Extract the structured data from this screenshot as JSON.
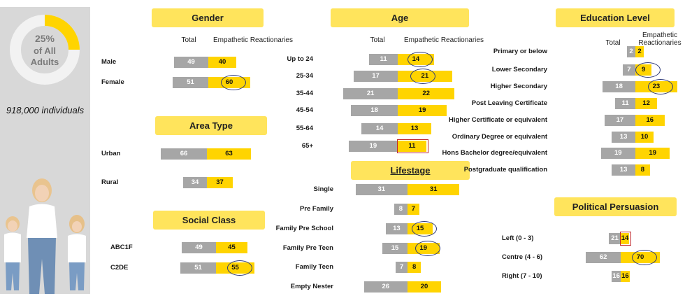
{
  "summary": {
    "percent": "25%",
    "line2": "of All",
    "line3": "Adults",
    "individuals": "918,000  individuals",
    "donut_fraction": 0.25
  },
  "colors": {
    "total": "#a6a6a6",
    "segment": "#ffd400",
    "header": "#ffe45c",
    "sidebar": "#d8d8d8"
  },
  "chart_data": [
    {
      "type": "bar",
      "title": "Gender",
      "col_total": "Total",
      "col_segment": "Empathetic Reactionaries",
      "categories": [
        "Male",
        "Female"
      ],
      "series": [
        {
          "name": "Total",
          "values": [
            49,
            51
          ]
        },
        {
          "name": "Empathetic Reactionaries",
          "values": [
            40,
            60
          ]
        }
      ],
      "highlights": {
        "circled": [
          "Female"
        ],
        "boxed": []
      }
    },
    {
      "type": "bar",
      "title": "Area Type",
      "categories": [
        "Urban",
        "Rural"
      ],
      "series": [
        {
          "name": "Total",
          "values": [
            66,
            34
          ]
        },
        {
          "name": "Empathetic Reactionaries",
          "values": [
            63,
            37
          ]
        }
      ],
      "highlights": {
        "circled": [],
        "boxed": []
      }
    },
    {
      "type": "bar",
      "title": "Social Class",
      "categories": [
        "ABC1F",
        "C2DE"
      ],
      "series": [
        {
          "name": "Total",
          "values": [
            49,
            51
          ]
        },
        {
          "name": "Empathetic Reactionaries",
          "values": [
            45,
            55
          ]
        }
      ],
      "highlights": {
        "circled": [
          "C2DE"
        ],
        "boxed": []
      }
    },
    {
      "type": "bar",
      "title": "Age",
      "col_total": "Total",
      "col_segment": "Empathetic Reactionaries",
      "categories": [
        "Up to 24",
        "25-34",
        "35-44",
        "45-54",
        "55-64",
        "65+"
      ],
      "series": [
        {
          "name": "Total",
          "values": [
            11,
            17,
            21,
            18,
            14,
            19
          ]
        },
        {
          "name": "Empathetic Reactionaries",
          "values": [
            14,
            21,
            22,
            19,
            13,
            11
          ]
        }
      ],
      "highlights": {
        "circled": [
          "Up to 24",
          "25-34"
        ],
        "boxed": [
          "65+"
        ]
      }
    },
    {
      "type": "bar",
      "title": "Lifestage",
      "categories": [
        "Single",
        "Pre Family",
        "Family Pre School",
        "Family Pre Teen",
        "Family Teen",
        "Empty Nester"
      ],
      "series": [
        {
          "name": "Total",
          "values": [
            31,
            8,
            13,
            15,
            7,
            26
          ]
        },
        {
          "name": "Empathetic Reactionaries",
          "values": [
            31,
            7,
            15,
            19,
            8,
            20
          ]
        }
      ],
      "highlights": {
        "circled": [
          "Family Pre School",
          "Family Pre Teen"
        ],
        "boxed": []
      }
    },
    {
      "type": "bar",
      "title": "Education Level",
      "col_total": "Total",
      "col_segment": "Empathetic Reactionaries",
      "categories": [
        "Primary or below",
        "Lower Secondary",
        "Higher Secondary",
        "Post Leaving Certificate",
        "Higher Certificate or equivalent",
        "Ordinary Degree or equivalent",
        "Hons Bachelor degree/equivalent",
        "Postgraduate qualification"
      ],
      "series": [
        {
          "name": "Total",
          "values": [
            2,
            7,
            18,
            11,
            17,
            13,
            19,
            13
          ]
        },
        {
          "name": "Empathetic Reactionaries",
          "values": [
            2,
            9,
            23,
            12,
            16,
            10,
            19,
            8
          ]
        }
      ],
      "highlights": {
        "circled": [
          "Lower Secondary",
          "Higher Secondary"
        ],
        "boxed": []
      }
    },
    {
      "type": "bar",
      "title": "Political Persuasion",
      "categories": [
        "Left (0 - 3)",
        "Centre (4 - 6)",
        "Right (7 - 10)"
      ],
      "series": [
        {
          "name": "Total",
          "values": [
            21,
            62,
            16
          ]
        },
        {
          "name": "Empathetic Reactionaries",
          "values": [
            14,
            70,
            16
          ]
        }
      ],
      "highlights": {
        "circled": [
          "Centre (4 - 6)"
        ],
        "boxed": [
          "Left (0 - 3)"
        ]
      }
    }
  ]
}
